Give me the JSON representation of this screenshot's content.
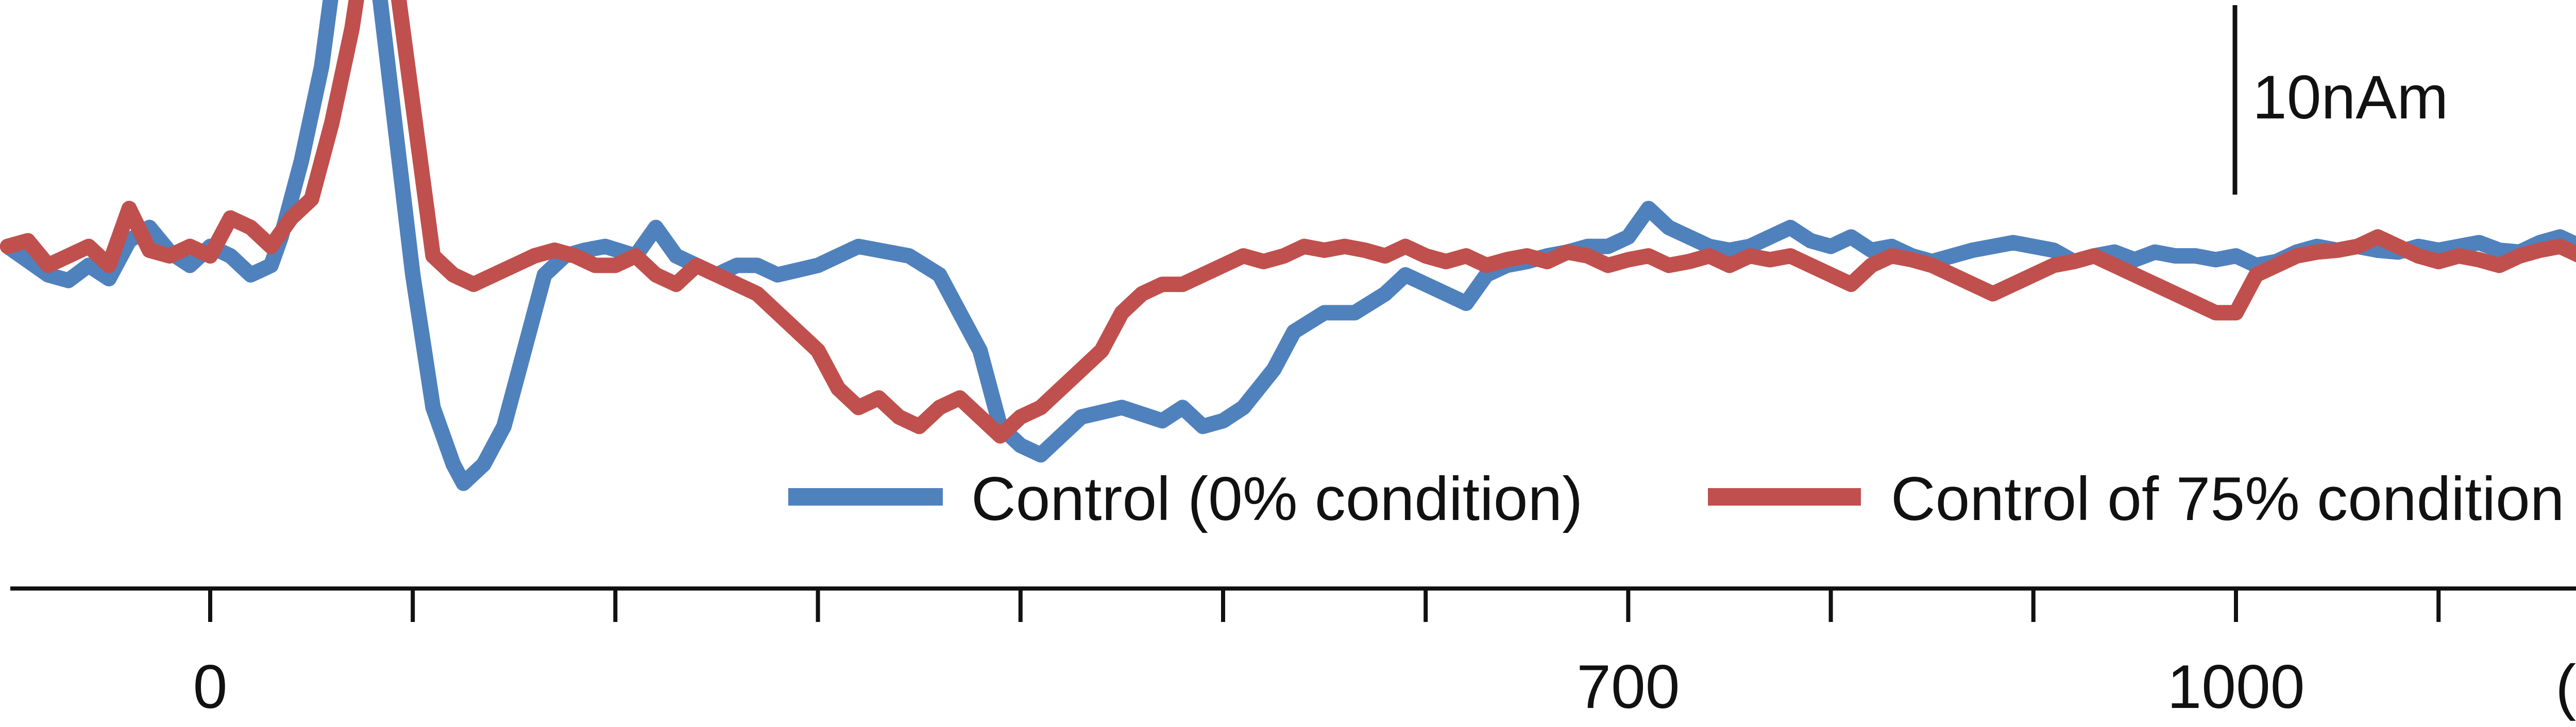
{
  "chart_data": {
    "type": "line",
    "title": "",
    "xlabel": "",
    "ylabel": "",
    "x_unit_label": "(ms)",
    "xlim": [
      -100,
      1200
    ],
    "ylim": [
      -22,
      24
    ],
    "x_tick_values": [
      0,
      100,
      200,
      300,
      400,
      500,
      600,
      700,
      800,
      900,
      1000,
      1100
    ],
    "x_tick_labels": [
      {
        "value": 0,
        "label": "0"
      },
      {
        "value": 700,
        "label": "700"
      },
      {
        "value": 1000,
        "label": "1000"
      }
    ],
    "scale_bar": {
      "label": "10nAm",
      "value": 10
    },
    "grid": false,
    "legend_position": "bottom-right",
    "series": [
      {
        "name": "Control (0% condition)",
        "color": "#4f81bd",
        "points": [
          [
            -100,
            0.5
          ],
          [
            -80,
            -1
          ],
          [
            -70,
            -1.3
          ],
          [
            -60,
            -0.5
          ],
          [
            -50,
            -1.2
          ],
          [
            -40,
            0.8
          ],
          [
            -30,
            1.5
          ],
          [
            -20,
            0.2
          ],
          [
            -10,
            -0.5
          ],
          [
            0,
            0.5
          ],
          [
            10,
            0
          ],
          [
            20,
            -1
          ],
          [
            30,
            -0.5
          ],
          [
            35,
            1
          ],
          [
            45,
            5
          ],
          [
            55,
            10
          ],
          [
            65,
            18
          ],
          [
            72,
            20
          ],
          [
            80,
            17
          ],
          [
            90,
            8
          ],
          [
            100,
            -1
          ],
          [
            110,
            -8
          ],
          [
            120,
            -11
          ],
          [
            125,
            -12
          ],
          [
            135,
            -11
          ],
          [
            145,
            -9
          ],
          [
            155,
            -5
          ],
          [
            165,
            -1
          ],
          [
            175,
            0
          ],
          [
            185,
            0.3
          ],
          [
            195,
            0.5
          ],
          [
            210,
            0
          ],
          [
            220,
            1.5
          ],
          [
            230,
            0
          ],
          [
            240,
            -0.5
          ],
          [
            250,
            -1
          ],
          [
            260,
            -0.5
          ],
          [
            270,
            -0.5
          ],
          [
            280,
            -1
          ],
          [
            300,
            -0.5
          ],
          [
            310,
            0
          ],
          [
            320,
            0.5
          ],
          [
            330,
            0.3
          ],
          [
            345,
            0
          ],
          [
            360,
            -1
          ],
          [
            370,
            -3
          ],
          [
            380,
            -5
          ],
          [
            390,
            -9
          ],
          [
            400,
            -10
          ],
          [
            410,
            -10.5
          ],
          [
            420,
            -9.5
          ],
          [
            430,
            -8.5
          ],
          [
            450,
            -8
          ],
          [
            470,
            -8.7
          ],
          [
            480,
            -8
          ],
          [
            490,
            -9
          ],
          [
            500,
            -8.7
          ],
          [
            510,
            -8
          ],
          [
            525,
            -6
          ],
          [
            535,
            -4
          ],
          [
            550,
            -3
          ],
          [
            565,
            -3
          ],
          [
            580,
            -2
          ],
          [
            590,
            -1
          ],
          [
            600,
            -1.5
          ],
          [
            610,
            -2
          ],
          [
            620,
            -2.5
          ],
          [
            630,
            -1
          ],
          [
            640,
            -0.5
          ],
          [
            650,
            -0.3
          ],
          [
            660,
            0
          ],
          [
            670,
            0.2
          ],
          [
            680,
            0.5
          ],
          [
            690,
            0.5
          ],
          [
            700,
            1
          ],
          [
            710,
            2.5
          ],
          [
            720,
            1.5
          ],
          [
            730,
            1
          ],
          [
            740,
            0.5
          ],
          [
            750,
            0.3
          ],
          [
            760,
            0.5
          ],
          [
            770,
            1
          ],
          [
            780,
            1.5
          ],
          [
            790,
            0.8
          ],
          [
            800,
            0.5
          ],
          [
            810,
            1
          ],
          [
            820,
            0.3
          ],
          [
            830,
            0.5
          ],
          [
            840,
            0
          ],
          [
            850,
            -0.3
          ],
          [
            860,
            0
          ],
          [
            870,
            0.3
          ],
          [
            880,
            0.5
          ],
          [
            890,
            0.7
          ],
          [
            900,
            0.5
          ],
          [
            910,
            0.3
          ],
          [
            920,
            -0.3
          ],
          [
            930,
            0
          ],
          [
            940,
            0.2
          ],
          [
            950,
            -0.2
          ],
          [
            960,
            0.2
          ],
          [
            970,
            0
          ],
          [
            980,
            0
          ],
          [
            990,
            -0.2
          ],
          [
            1000,
            0
          ],
          [
            1010,
            -0.5
          ],
          [
            1020,
            -0.3
          ],
          [
            1030,
            0.2
          ],
          [
            1040,
            0.5
          ],
          [
            1050,
            0.3
          ],
          [
            1060,
            0.5
          ],
          [
            1070,
            0.3
          ],
          [
            1080,
            0.2
          ],
          [
            1090,
            0.5
          ],
          [
            1100,
            0.3
          ],
          [
            1110,
            0.5
          ],
          [
            1120,
            0.7
          ],
          [
            1130,
            0.3
          ],
          [
            1140,
            0.2
          ],
          [
            1150,
            0.7
          ],
          [
            1160,
            1
          ],
          [
            1170,
            0.5
          ],
          [
            1180,
            0
          ],
          [
            1190,
            -1
          ],
          [
            1200,
            0
          ]
        ]
      },
      {
        "name": "Control of 75% condition",
        "color": "#c0504d",
        "points": [
          [
            -100,
            0.5
          ],
          [
            -90,
            0.8
          ],
          [
            -80,
            -0.5
          ],
          [
            -70,
            0
          ],
          [
            -60,
            0.5
          ],
          [
            -50,
            -0.5
          ],
          [
            -40,
            2.5
          ],
          [
            -30,
            0.3
          ],
          [
            -20,
            0
          ],
          [
            -10,
            0.5
          ],
          [
            0,
            0
          ],
          [
            10,
            2
          ],
          [
            20,
            1.5
          ],
          [
            30,
            0.5
          ],
          [
            40,
            2
          ],
          [
            50,
            3
          ],
          [
            60,
            7
          ],
          [
            70,
            12
          ],
          [
            80,
            19
          ],
          [
            90,
            16
          ],
          [
            100,
            8
          ],
          [
            110,
            0
          ],
          [
            120,
            -1
          ],
          [
            130,
            -1.5
          ],
          [
            140,
            -1
          ],
          [
            150,
            -0.5
          ],
          [
            160,
            0
          ],
          [
            170,
            0.3
          ],
          [
            180,
            0
          ],
          [
            190,
            -0.5
          ],
          [
            200,
            -0.5
          ],
          [
            210,
            0
          ],
          [
            220,
            -1
          ],
          [
            230,
            -1.5
          ],
          [
            240,
            -0.5
          ],
          [
            250,
            -1
          ],
          [
            260,
            -1.5
          ],
          [
            270,
            -2
          ],
          [
            280,
            -3
          ],
          [
            290,
            -4
          ],
          [
            300,
            -5
          ],
          [
            310,
            -7
          ],
          [
            320,
            -8
          ],
          [
            330,
            -7.5
          ],
          [
            340,
            -8.5
          ],
          [
            350,
            -9
          ],
          [
            360,
            -8
          ],
          [
            370,
            -7.5
          ],
          [
            380,
            -8.5
          ],
          [
            390,
            -9.5
          ],
          [
            400,
            -8.5
          ],
          [
            410,
            -8
          ],
          [
            420,
            -7
          ],
          [
            430,
            -6
          ],
          [
            440,
            -5
          ],
          [
            450,
            -3
          ],
          [
            460,
            -2
          ],
          [
            470,
            -1.5
          ],
          [
            480,
            -1.5
          ],
          [
            490,
            -1
          ],
          [
            500,
            -0.5
          ],
          [
            510,
            0
          ],
          [
            520,
            -0.3
          ],
          [
            530,
            0
          ],
          [
            540,
            0.5
          ],
          [
            550,
            0.3
          ],
          [
            560,
            0.5
          ],
          [
            570,
            0.3
          ],
          [
            580,
            0
          ],
          [
            590,
            0.5
          ],
          [
            600,
            0
          ],
          [
            610,
            -0.3
          ],
          [
            620,
            0
          ],
          [
            630,
            -0.5
          ],
          [
            640,
            -0.2
          ],
          [
            650,
            0
          ],
          [
            660,
            -0.3
          ],
          [
            670,
            0.2
          ],
          [
            680,
            0
          ],
          [
            690,
            -0.5
          ],
          [
            700,
            -0.2
          ],
          [
            710,
            0
          ],
          [
            720,
            -0.5
          ],
          [
            730,
            -0.3
          ],
          [
            740,
            0
          ],
          [
            750,
            -0.5
          ],
          [
            760,
            0
          ],
          [
            770,
            -0.2
          ],
          [
            780,
            0
          ],
          [
            790,
            -0.5
          ],
          [
            800,
            -1
          ],
          [
            810,
            -1.5
          ],
          [
            820,
            -0.5
          ],
          [
            830,
            0
          ],
          [
            840,
            -0.2
          ],
          [
            850,
            -0.5
          ],
          [
            860,
            -1
          ],
          [
            870,
            -1.5
          ],
          [
            880,
            -2
          ],
          [
            890,
            -1.5
          ],
          [
            900,
            -1
          ],
          [
            910,
            -0.5
          ],
          [
            920,
            -0.3
          ],
          [
            930,
            0
          ],
          [
            940,
            -0.5
          ],
          [
            950,
            -1
          ],
          [
            960,
            -1.5
          ],
          [
            970,
            -2
          ],
          [
            980,
            -2.5
          ],
          [
            990,
            -3
          ],
          [
            1000,
            -3
          ],
          [
            1010,
            -1
          ],
          [
            1020,
            -0.5
          ],
          [
            1030,
            0
          ],
          [
            1040,
            0.2
          ],
          [
            1050,
            0.3
          ],
          [
            1060,
            0.5
          ],
          [
            1070,
            1
          ],
          [
            1080,
            0.5
          ],
          [
            1090,
            0
          ],
          [
            1100,
            -0.3
          ],
          [
            1110,
            0
          ],
          [
            1120,
            -0.2
          ],
          [
            1130,
            -0.5
          ],
          [
            1140,
            0
          ],
          [
            1150,
            0.3
          ],
          [
            1160,
            0.5
          ],
          [
            1170,
            0
          ],
          [
            1180,
            -0.3
          ],
          [
            1190,
            -0.5
          ],
          [
            1200,
            -1
          ]
        ]
      }
    ]
  }
}
